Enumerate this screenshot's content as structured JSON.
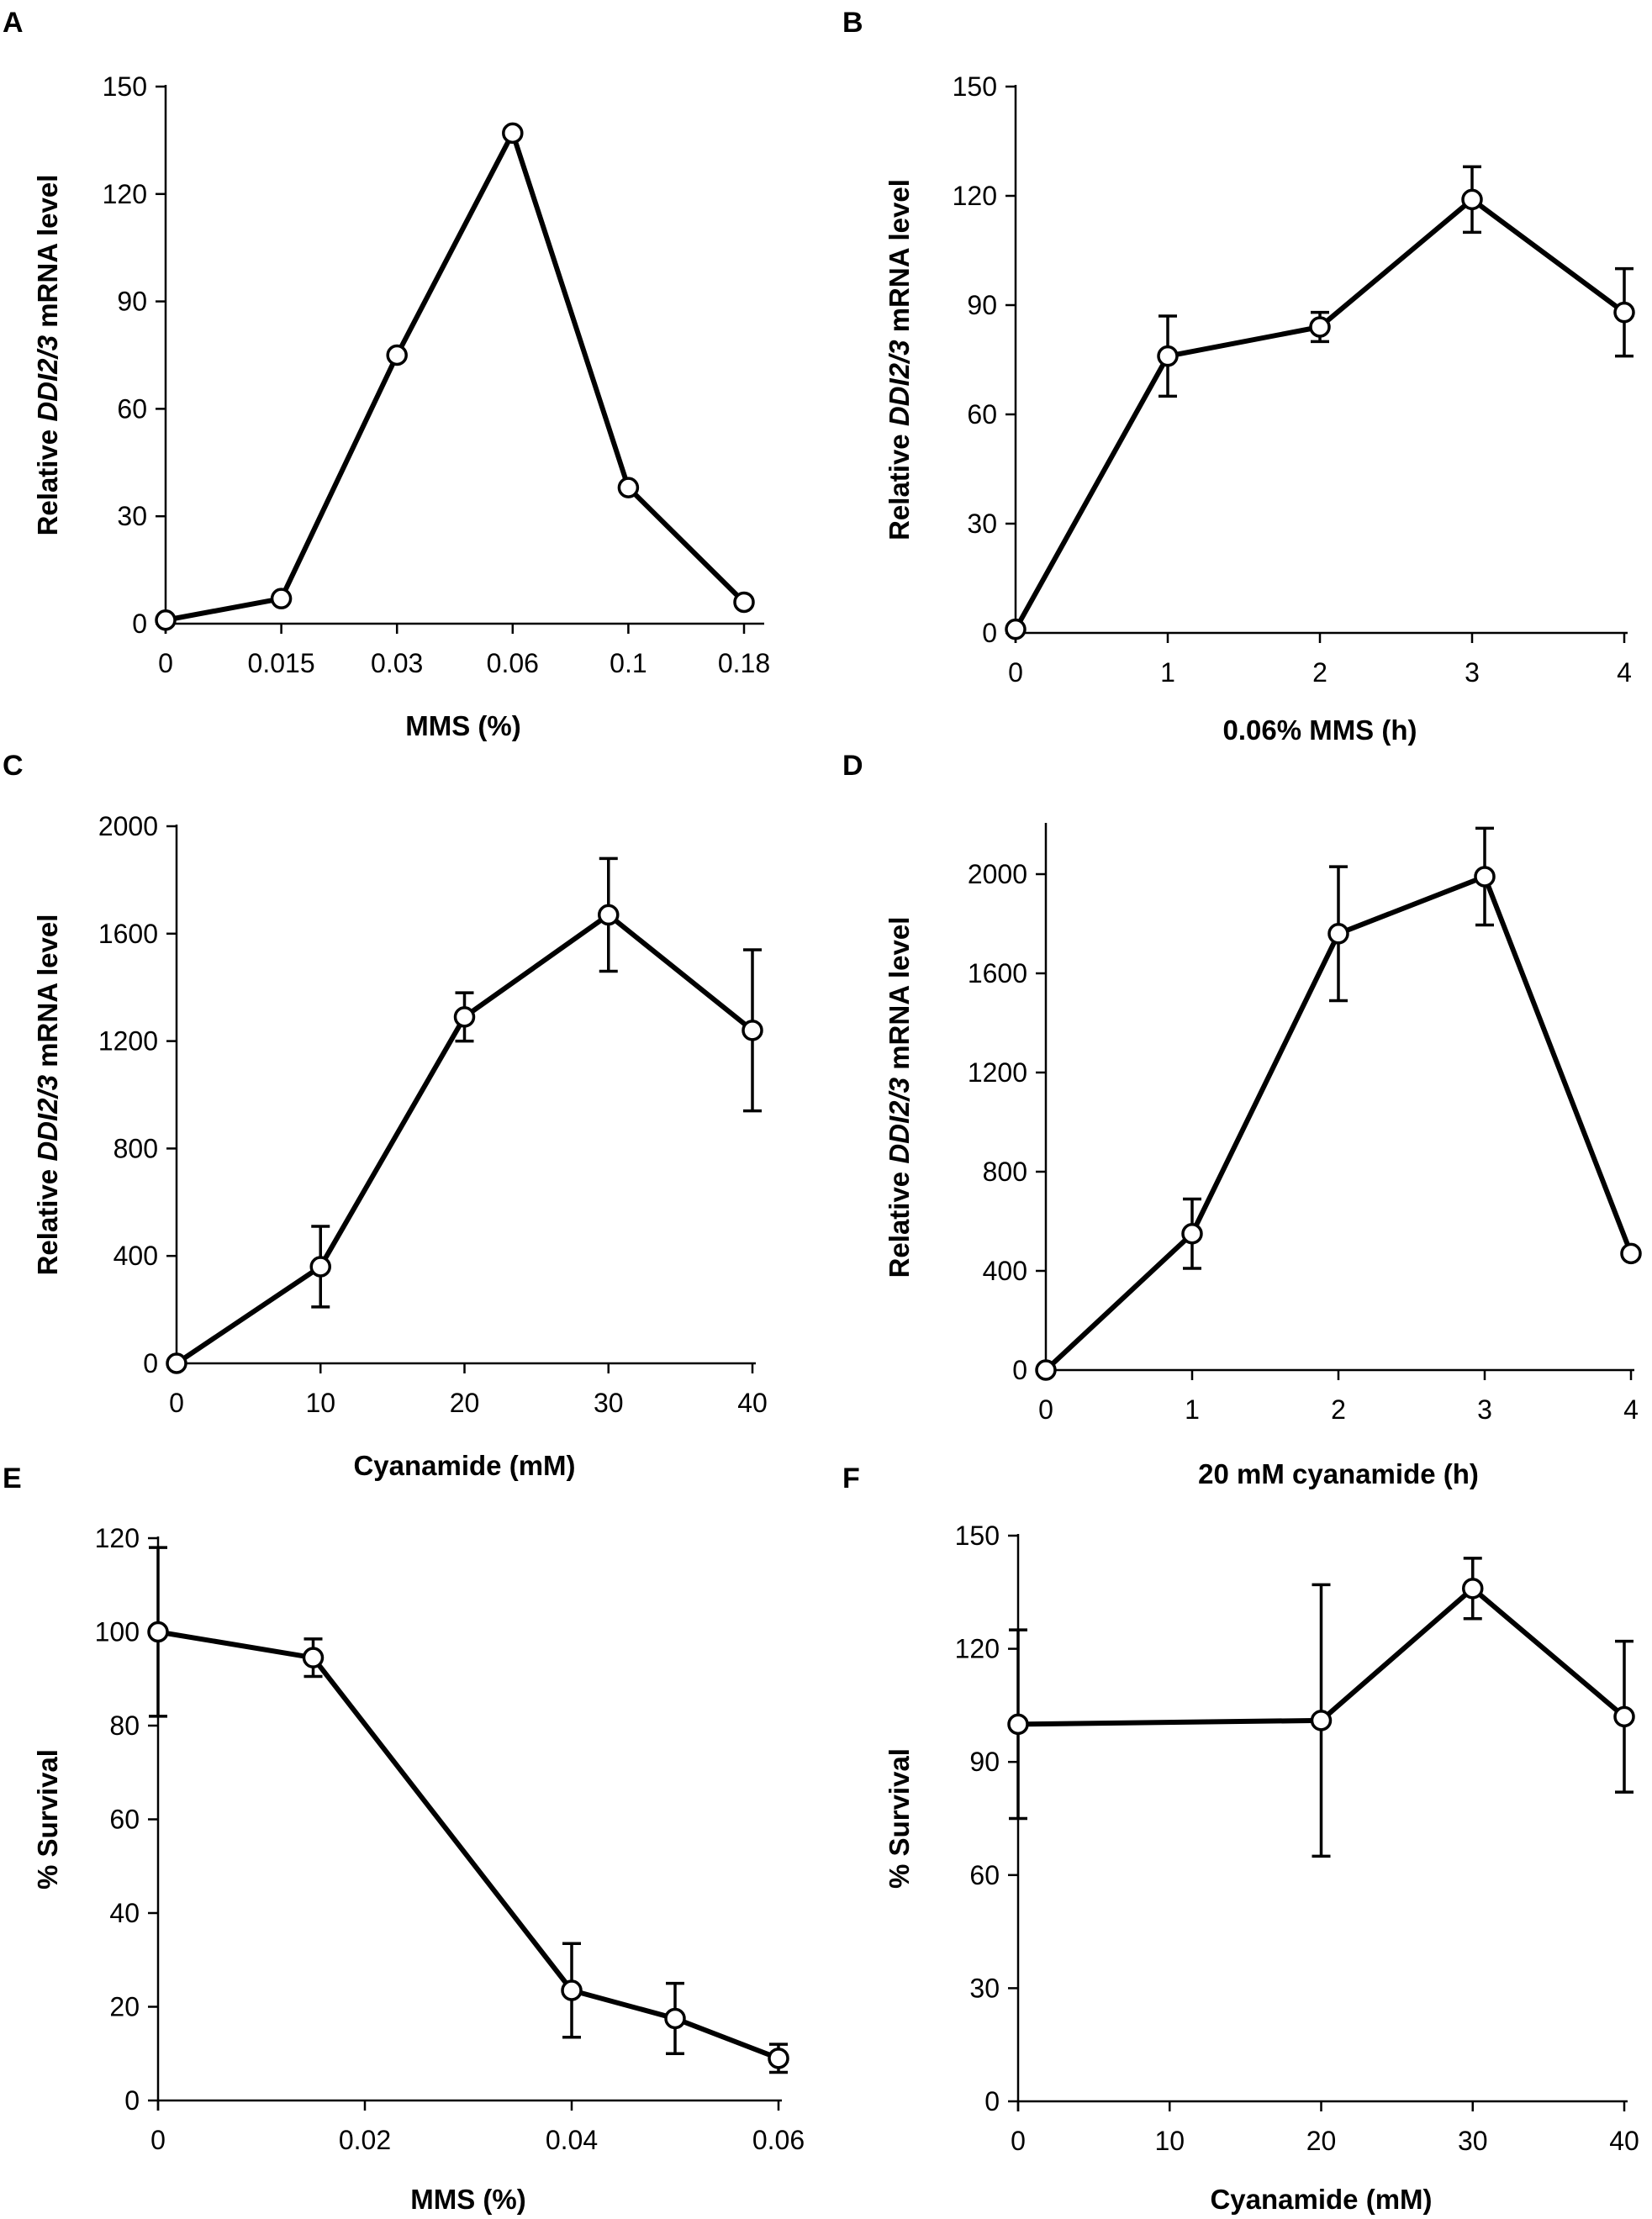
{
  "chart_data": [
    {
      "panel": "A",
      "type": "line",
      "xmode": "category",
      "categories": [
        "0",
        "0.015",
        "0.03",
        "0.06",
        "0.1",
        "0.18"
      ],
      "values": [
        1,
        7,
        75,
        137,
        38,
        6
      ],
      "errors": null,
      "xlabel": "MMS (%)",
      "ylabel_prefix": "Relative ",
      "ylabel_italic": "DDI2/3",
      "ylabel_suffix": " mRNA level",
      "ylim": [
        0,
        150
      ],
      "yticks": [
        0,
        30,
        60,
        90,
        120,
        150
      ]
    },
    {
      "panel": "B",
      "type": "line",
      "xmode": "category",
      "categories": [
        "0",
        "1",
        "2",
        "3",
        "4"
      ],
      "values": [
        1,
        76,
        84,
        119,
        88
      ],
      "errors": [
        0,
        11,
        4,
        9,
        12
      ],
      "xlabel": "0.06% MMS (h)",
      "ylabel_prefix": "Relative ",
      "ylabel_italic": "DDI2/3",
      "ylabel_suffix": " mRNA level",
      "ylim": [
        0,
        150
      ],
      "yticks": [
        0,
        30,
        60,
        90,
        120,
        150
      ]
    },
    {
      "panel": "C",
      "type": "line",
      "xmode": "category",
      "categories": [
        "0",
        "10",
        "20",
        "30",
        "40"
      ],
      "values": [
        0,
        360,
        1290,
        1670,
        1240
      ],
      "errors": [
        0,
        150,
        90,
        210,
        300
      ],
      "xlabel": "Cyanamide (mM)",
      "ylabel_prefix": "Relative ",
      "ylabel_italic": "DDI2/3",
      "ylabel_suffix": " mRNA level",
      "ylim": [
        0,
        2000
      ],
      "yticks": [
        0,
        400,
        800,
        1200,
        1600,
        2000
      ]
    },
    {
      "panel": "D",
      "type": "line",
      "xmode": "category",
      "categories": [
        "0",
        "1",
        "2",
        "3",
        "4"
      ],
      "values": [
        0,
        550,
        1760,
        1990,
        470
      ],
      "errors": [
        0,
        140,
        270,
        195,
        0
      ],
      "xlabel": "20 mM cyanamide (h)",
      "ylabel_prefix": "Relative ",
      "ylabel_italic": "DDI2/3",
      "ylabel_suffix": " mRNA level",
      "ylim": [
        0,
        2200
      ],
      "yticks": [
        0,
        400,
        800,
        1200,
        1600,
        2000
      ]
    },
    {
      "panel": "E",
      "type": "line",
      "xmode": "numeric",
      "x": [
        0,
        0.015,
        0.04,
        0.05,
        0.06
      ],
      "values": [
        100,
        94.5,
        23.5,
        17.5,
        9
      ],
      "errors": [
        18,
        4,
        10,
        7.5,
        3
      ],
      "xlim": [
        0,
        0.06
      ],
      "xticks": [
        "0",
        "0.02",
        "0.04",
        "0.06"
      ],
      "xtick_values": [
        0,
        0.02,
        0.04,
        0.06
      ],
      "xlabel": "MMS (%)",
      "ylabel": "% Survival",
      "ylim": [
        0,
        120
      ],
      "yticks": [
        0,
        20,
        40,
        60,
        80,
        100,
        120
      ]
    },
    {
      "panel": "F",
      "type": "line",
      "xmode": "numeric",
      "x": [
        0,
        20,
        30,
        40
      ],
      "values": [
        100,
        101,
        136,
        102
      ],
      "errors": [
        25,
        36,
        8,
        20
      ],
      "xlim": [
        0,
        40
      ],
      "xticks": [
        "0",
        "10",
        "20",
        "30",
        "40"
      ],
      "xtick_values": [
        0,
        10,
        20,
        30,
        40
      ],
      "xlabel": "Cyanamide (mM)",
      "ylabel": "% Survival",
      "ylim": [
        0,
        150
      ],
      "yticks": [
        0,
        30,
        60,
        90,
        120,
        150
      ]
    }
  ]
}
